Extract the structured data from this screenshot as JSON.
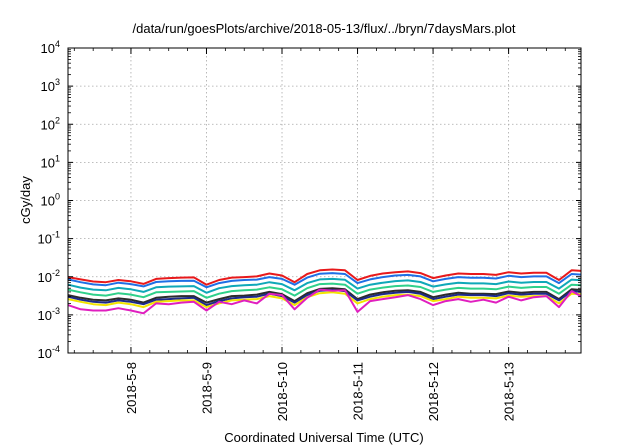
{
  "chart_data": {
    "type": "line",
    "title": "/data/run/goesPlots/archive/2018-05-13/flux/../bryn/7daysMars.plot",
    "xlabel": "Coordinated Universal Time (UTC)",
    "ylabel": "cGy/day",
    "y_scale": "log",
    "ylim": [
      0.0001,
      10000
    ],
    "y_ticks": [
      {
        "value": 0.0001,
        "base": "10",
        "exp": "-4"
      },
      {
        "value": 0.001,
        "base": "10",
        "exp": "-3"
      },
      {
        "value": 0.01,
        "base": "10",
        "exp": "-2"
      },
      {
        "value": 0.1,
        "base": "10",
        "exp": "-1"
      },
      {
        "value": 1,
        "base": "10",
        "exp": "0"
      },
      {
        "value": 10,
        "base": "10",
        "exp": "1"
      },
      {
        "value": 100,
        "base": "10",
        "exp": "2"
      },
      {
        "value": 1000,
        "base": "10",
        "exp": "3"
      },
      {
        "value": 10000,
        "base": "10",
        "exp": "4"
      }
    ],
    "xlim": [
      "2018-05-07T04:00",
      "2018-05-13T23:00"
    ],
    "x_ticks": [
      "2018-5-8",
      "2018-5-9",
      "2018-5-10",
      "2018-5-11",
      "2018-5-12",
      "2018-5-13"
    ],
    "x_tick_dates": [
      "2018-05-08",
      "2018-05-09",
      "2018-05-10",
      "2018-05-11",
      "2018-05-12",
      "2018-05-13"
    ],
    "grid": true,
    "x": [
      "2018-05-07T04:00",
      "2018-05-07T08:00",
      "2018-05-07T12:00",
      "2018-05-07T16:00",
      "2018-05-07T20:00",
      "2018-05-08T00:00",
      "2018-05-08T04:00",
      "2018-05-08T08:00",
      "2018-05-08T12:00",
      "2018-05-08T16:00",
      "2018-05-08T20:00",
      "2018-05-09T00:00",
      "2018-05-09T04:00",
      "2018-05-09T08:00",
      "2018-05-09T12:00",
      "2018-05-09T16:00",
      "2018-05-09T20:00",
      "2018-05-10T00:00",
      "2018-05-10T04:00",
      "2018-05-10T08:00",
      "2018-05-10T12:00",
      "2018-05-10T16:00",
      "2018-05-10T20:00",
      "2018-05-11T00:00",
      "2018-05-11T04:00",
      "2018-05-11T08:00",
      "2018-05-11T12:00",
      "2018-05-11T16:00",
      "2018-05-11T20:00",
      "2018-05-12T00:00",
      "2018-05-12T04:00",
      "2018-05-12T08:00",
      "2018-05-12T12:00",
      "2018-05-12T16:00",
      "2018-05-12T20:00",
      "2018-05-13T00:00",
      "2018-05-13T04:00",
      "2018-05-13T08:00",
      "2018-05-13T12:00",
      "2018-05-13T16:00",
      "2018-05-13T20:00",
      "2018-05-13T23:00"
    ],
    "series": [
      {
        "color": "#e8191b",
        "values": [
          0.0098,
          0.0085,
          0.0075,
          0.0072,
          0.0082,
          0.0076,
          0.0065,
          0.0088,
          0.0092,
          0.0095,
          0.0096,
          0.0062,
          0.0082,
          0.0095,
          0.0098,
          0.0102,
          0.0122,
          0.0108,
          0.0072,
          0.0118,
          0.0148,
          0.0155,
          0.0148,
          0.0082,
          0.0105,
          0.0122,
          0.0132,
          0.0138,
          0.0125,
          0.0092,
          0.0108,
          0.0122,
          0.0118,
          0.0118,
          0.0112,
          0.0132,
          0.0122,
          0.0128,
          0.0128,
          0.0082,
          0.0148,
          0.0142
        ]
      },
      {
        "color": "#1f6fe5",
        "values": [
          0.0085,
          0.0072,
          0.0063,
          0.006,
          0.007,
          0.0064,
          0.0056,
          0.0073,
          0.0076,
          0.0078,
          0.0079,
          0.0053,
          0.0068,
          0.0078,
          0.0082,
          0.0084,
          0.0098,
          0.0088,
          0.0062,
          0.0095,
          0.012,
          0.0125,
          0.0118,
          0.0068,
          0.0085,
          0.0098,
          0.0108,
          0.0112,
          0.0102,
          0.0076,
          0.0088,
          0.0098,
          0.0094,
          0.0094,
          0.009,
          0.0106,
          0.0098,
          0.0102,
          0.0102,
          0.0068,
          0.0118,
          0.0114
        ]
      },
      {
        "color": "#0fa8b8",
        "values": [
          0.0062,
          0.0052,
          0.0046,
          0.0044,
          0.0051,
          0.0047,
          0.004,
          0.0053,
          0.0055,
          0.0056,
          0.0057,
          0.0038,
          0.005,
          0.0057,
          0.006,
          0.0062,
          0.0072,
          0.0064,
          0.0044,
          0.0068,
          0.0085,
          0.0088,
          0.0083,
          0.0049,
          0.0062,
          0.007,
          0.0077,
          0.008,
          0.0073,
          0.0055,
          0.0063,
          0.007,
          0.0067,
          0.0067,
          0.0064,
          0.0075,
          0.007,
          0.0073,
          0.0073,
          0.0049,
          0.0084,
          0.0081
        ]
      },
      {
        "color": "#2fd08a",
        "values": [
          0.0046,
          0.0039,
          0.0034,
          0.0032,
          0.0037,
          0.0034,
          0.0029,
          0.0039,
          0.004,
          0.0041,
          0.0042,
          0.0028,
          0.0036,
          0.0042,
          0.0044,
          0.0046,
          0.0053,
          0.0047,
          0.0032,
          0.005,
          0.0064,
          0.0066,
          0.0062,
          0.0036,
          0.0046,
          0.0052,
          0.0057,
          0.0059,
          0.0054,
          0.004,
          0.0046,
          0.0051,
          0.0049,
          0.0049,
          0.0047,
          0.0055,
          0.0051,
          0.0054,
          0.0054,
          0.0036,
          0.0062,
          0.006
        ]
      },
      {
        "color": "#2b2b2b",
        "values": [
          0.0033,
          0.0028,
          0.0025,
          0.0024,
          0.0027,
          0.0025,
          0.0021,
          0.0028,
          0.003,
          0.0031,
          0.0031,
          0.0021,
          0.0026,
          0.0031,
          0.0032,
          0.0034,
          0.004,
          0.0035,
          0.0023,
          0.0037,
          0.0048,
          0.005,
          0.0047,
          0.0026,
          0.0034,
          0.0039,
          0.0043,
          0.0044,
          0.004,
          0.0029,
          0.0034,
          0.0038,
          0.0036,
          0.0036,
          0.0035,
          0.0041,
          0.0038,
          0.004,
          0.004,
          0.0026,
          0.0047,
          0.0045
        ]
      },
      {
        "color": "#1d2a8a",
        "values": [
          0.003,
          0.0025,
          0.0022,
          0.0021,
          0.0024,
          0.0022,
          0.0019,
          0.0025,
          0.0026,
          0.0027,
          0.0028,
          0.0018,
          0.0023,
          0.0027,
          0.0029,
          0.003,
          0.0036,
          0.0031,
          0.0021,
          0.0033,
          0.0043,
          0.0045,
          0.0042,
          0.0024,
          0.003,
          0.0035,
          0.0038,
          0.004,
          0.0036,
          0.0026,
          0.003,
          0.0034,
          0.0033,
          0.0033,
          0.0031,
          0.0037,
          0.0034,
          0.0036,
          0.0036,
          0.0024,
          0.0042,
          0.004
        ]
      },
      {
        "color": "#f2e400",
        "values": [
          0.0026,
          0.0022,
          0.0019,
          0.0018,
          0.0021,
          0.0019,
          0.0016,
          0.0022,
          0.0023,
          0.0024,
          0.0024,
          0.0016,
          0.002,
          0.0024,
          0.0025,
          0.0026,
          0.0031,
          0.0027,
          0.0018,
          0.0029,
          0.0037,
          0.0039,
          0.0036,
          0.002,
          0.0026,
          0.003,
          0.0033,
          0.0034,
          0.0031,
          0.0023,
          0.0026,
          0.003,
          0.0028,
          0.0028,
          0.0027,
          0.0032,
          0.003,
          0.0031,
          0.0031,
          0.002,
          0.0036,
          0.0035
        ]
      },
      {
        "color": "#e01fbf",
        "values": [
          0.0018,
          0.0014,
          0.0013,
          0.0013,
          0.0015,
          0.0013,
          0.0011,
          0.002,
          0.0019,
          0.0021,
          0.0022,
          0.0013,
          0.0022,
          0.0019,
          0.0024,
          0.002,
          0.0036,
          0.0033,
          0.0014,
          0.0028,
          0.0046,
          0.0043,
          0.0044,
          0.0012,
          0.0023,
          0.0026,
          0.0029,
          0.0033,
          0.0026,
          0.0018,
          0.0023,
          0.0026,
          0.0022,
          0.0025,
          0.0021,
          0.003,
          0.0024,
          0.0029,
          0.0031,
          0.0016,
          0.0042,
          0.0031
        ]
      }
    ]
  }
}
